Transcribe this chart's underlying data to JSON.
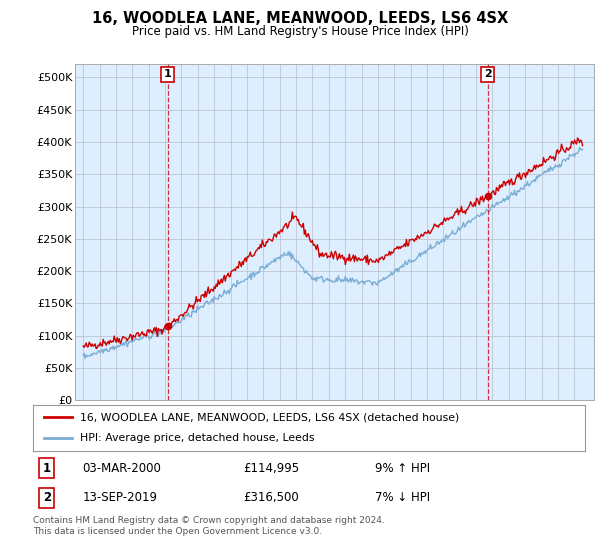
{
  "title": "16, WOODLEA LANE, MEANWOOD, LEEDS, LS6 4SX",
  "subtitle": "Price paid vs. HM Land Registry's House Price Index (HPI)",
  "ylim": [
    0,
    520000
  ],
  "yticks": [
    0,
    50000,
    100000,
    150000,
    200000,
    250000,
    300000,
    350000,
    400000,
    450000,
    500000
  ],
  "ytick_labels": [
    "£0",
    "£50K",
    "£100K",
    "£150K",
    "£200K",
    "£250K",
    "£300K",
    "£350K",
    "£400K",
    "£450K",
    "£500K"
  ],
  "sale1_date_num": 2000.17,
  "sale1_price": 114995,
  "sale2_date_num": 2019.71,
  "sale2_price": 316500,
  "legend_house": "16, WOODLEA LANE, MEANWOOD, LEEDS, LS6 4SX (detached house)",
  "legend_hpi": "HPI: Average price, detached house, Leeds",
  "table_row1": [
    "1",
    "03-MAR-2000",
    "£114,995",
    "9% ↑ HPI"
  ],
  "table_row2": [
    "2",
    "13-SEP-2019",
    "£316,500",
    "7% ↓ HPI"
  ],
  "footnote": "Contains HM Land Registry data © Crown copyright and database right 2024.\nThis data is licensed under the Open Government Licence v3.0.",
  "house_color": "#cc0000",
  "hpi_color": "#7aadd4",
  "plot_bg_color": "#ddeeff",
  "background_color": "#ffffff",
  "grid_color": "#bbbbcc"
}
